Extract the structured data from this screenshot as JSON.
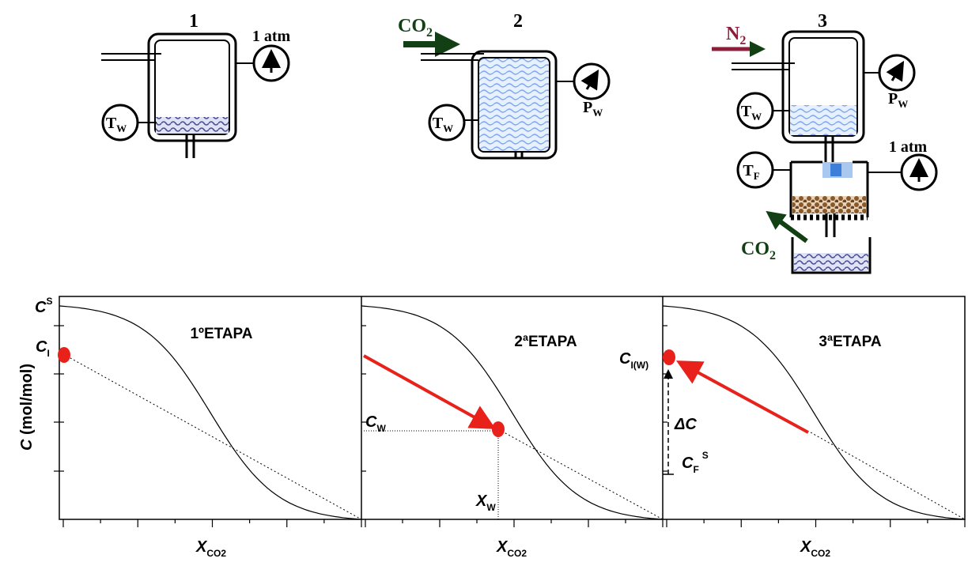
{
  "stages": [
    {
      "number": "1",
      "gauge": "1 atm",
      "thermo": {
        "base": "T",
        "sub": "W"
      }
    },
    {
      "number": "2",
      "gas": {
        "base": "CO",
        "sub": "2"
      },
      "gauge": {
        "base": "P",
        "sub": "W"
      },
      "thermo": {
        "base": "T",
        "sub": "W"
      }
    },
    {
      "number": "3",
      "gas": {
        "base": "N",
        "sub": "2"
      },
      "gauge": {
        "base": "P",
        "sub": "W"
      },
      "thermo": {
        "base": "T",
        "sub": "W"
      },
      "gauge2": "1 atm",
      "thermo2": {
        "base": "T",
        "sub": "F"
      },
      "gas_out": {
        "base": "CO",
        "sub": "2"
      }
    }
  ],
  "plots": {
    "y_label": {
      "base": "C",
      "rest": " (mol/mol)"
    },
    "panels": [
      {
        "title": "1ºETAPA",
        "x_label": {
          "base": "X",
          "sub": "CO2"
        },
        "c_s": {
          "base": "C",
          "sup": "S"
        },
        "c_i": {
          "base": "C",
          "sub": "I"
        }
      },
      {
        "title": "2ªETAPA",
        "x_label": {
          "base": "X",
          "sub": "CO2"
        },
        "c_w": {
          "base": "C",
          "sub": "W"
        },
        "x_w": {
          "base": "X",
          "sub": "W"
        }
      },
      {
        "title": "3ªETAPA",
        "x_label": {
          "base": "X",
          "sub": "CO2"
        },
        "c_iw": {
          "base": "C",
          "sub": "I(W)"
        },
        "delta_c": "ΔC",
        "c_fs": {
          "base": "C",
          "sub": "F",
          "sup": "S"
        }
      }
    ]
  }
}
